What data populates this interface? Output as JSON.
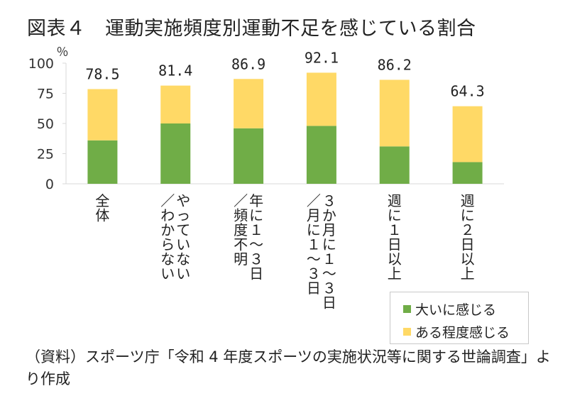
{
  "colors": {
    "strong": "#70ad47",
    "moderate": "#ffd966",
    "axis": "#d9d9d9"
  },
  "chart_data": {
    "type": "bar",
    "stacked": true,
    "title": "図表４　運動実施頻度別運動不足を感じている割合",
    "ylabel": "％",
    "xlabel": "",
    "ylim": [
      0,
      100
    ],
    "yticks": [
      0,
      25,
      50,
      75,
      100
    ],
    "categories": [
      "全体",
      "やっていない／わからない",
      "年に１～３日／頻度不明",
      "３か月に１～３日／月に１～３日",
      "週に１日以上",
      "週に２日以上"
    ],
    "categories_lines": [
      [
        "全体"
      ],
      [
        "やっていない",
        "／わからない"
      ],
      [
        "年に１～３日",
        "／頻度不明"
      ],
      [
        "３か月に１～３日",
        "／月に１～３日"
      ],
      [
        "週に１日以上"
      ],
      [
        "週に２日以上"
      ]
    ],
    "series": [
      {
        "name": "大いに感じる",
        "values": [
          36,
          50,
          46,
          48,
          31,
          18
        ]
      },
      {
        "name": "ある程度感じる",
        "values": [
          42.5,
          31.4,
          40.9,
          44.1,
          55.2,
          46.3
        ]
      }
    ],
    "totals": [
      78.5,
      81.4,
      86.9,
      92.1,
      86.2,
      64.3
    ],
    "total_labels": [
      "78.5",
      "81.4",
      "86.9",
      "92.1",
      "86.2",
      "64.3"
    ],
    "legend_position": "bottom-right",
    "grid": false
  },
  "source": "（資料）スポーツ庁「令和 4 年度スポーツの実施状況等に関する世論調査」より作成"
}
